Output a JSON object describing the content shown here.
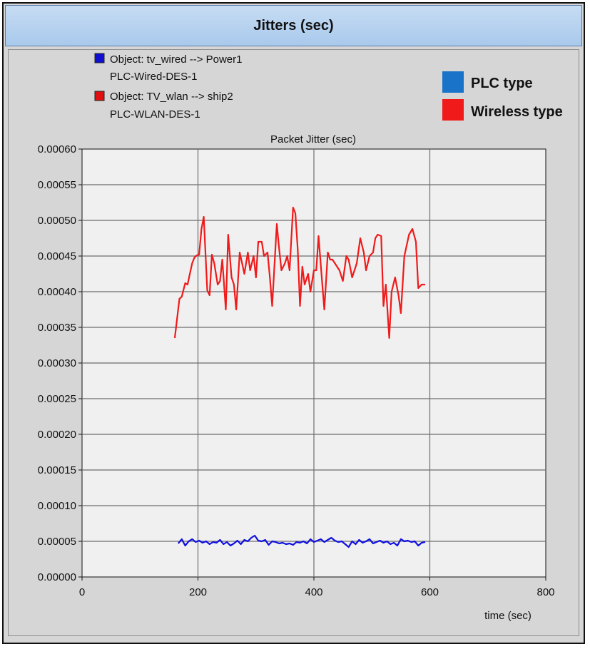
{
  "window": {
    "title": "Jitters (sec)"
  },
  "object_legend": [
    {
      "line1": "Object: tv_wired --> Power1",
      "line2": "PLC-Wired-DES-1",
      "color": "#1010d0"
    },
    {
      "line1": "Object: TV_wlan --> ship2",
      "line2": "PLC-WLAN-DES-1",
      "color": "#e01010"
    }
  ],
  "type_legend": [
    {
      "label": "PLC type",
      "color": "#1873c9"
    },
    {
      "label": "Wireless type",
      "color": "#f01a1a"
    }
  ],
  "chart_data": {
    "type": "line",
    "title": "Packet Jitter (sec)",
    "xlabel": "time (sec)",
    "ylabel": "",
    "xlim": [
      0,
      800
    ],
    "ylim": [
      0,
      0.0006
    ],
    "x_ticks": [
      "0",
      "200",
      "400",
      "600",
      "800"
    ],
    "y_ticks": [
      "0.00000",
      "0.00005",
      "0.00010",
      "0.00015",
      "0.00020",
      "0.00025",
      "0.00030",
      "0.00035",
      "0.00040",
      "0.00045",
      "0.00050",
      "0.00055",
      "0.00060"
    ],
    "grid": true,
    "series": [
      {
        "color": "#1010e0",
        "x": [
          166,
          172,
          178,
          184,
          190,
          196,
          202,
          208,
          214,
          220,
          226,
          232,
          238,
          244,
          250,
          256,
          262,
          268,
          274,
          280,
          286,
          292,
          298,
          304,
          310,
          316,
          322,
          328,
          334,
          340,
          346,
          352,
          358,
          364,
          370,
          376,
          382,
          388,
          394,
          400,
          406,
          412,
          418,
          424,
          430,
          436,
          442,
          448,
          454,
          460,
          466,
          472,
          478,
          484,
          490,
          496,
          502,
          508,
          514,
          520,
          526,
          532,
          538,
          544,
          550,
          556,
          562,
          568,
          574,
          580,
          586,
          592
        ],
        "y": [
          4.7e-05,
          5.3e-05,
          4.4e-05,
          5e-05,
          5.3e-05,
          4.9e-05,
          5.1e-05,
          4.8e-05,
          5e-05,
          4.6e-05,
          4.9e-05,
          4.8e-05,
          5.2e-05,
          4.6e-05,
          4.9e-05,
          4.4e-05,
          4.7e-05,
          5.1e-05,
          4.6e-05,
          5.2e-05,
          5e-05,
          5.5e-05,
          5.8e-05,
          5.1e-05,
          5e-05,
          5.2e-05,
          4.5e-05,
          5e-05,
          4.9e-05,
          4.7e-05,
          4.8e-05,
          4.6e-05,
          4.7e-05,
          4.5e-05,
          4.9e-05,
          4.8e-05,
          5e-05,
          4.7e-05,
          5.3e-05,
          4.9e-05,
          5.1e-05,
          5.3e-05,
          4.9e-05,
          5.2e-05,
          5.5e-05,
          5.1e-05,
          4.9e-05,
          5e-05,
          4.6e-05,
          4.2e-05,
          5e-05,
          4.6e-05,
          5.2e-05,
          4.8e-05,
          5e-05,
          5.3e-05,
          4.7e-05,
          4.9e-05,
          5.1e-05,
          4.8e-05,
          5e-05,
          4.6e-05,
          4.8e-05,
          4.4e-05,
          5.3e-05,
          5e-05,
          5.1e-05,
          4.9e-05,
          5e-05,
          4.4e-05,
          4.8e-05,
          4.9e-05
        ]
      },
      {
        "color": "#f01a1a",
        "x": [
          160,
          168,
          172,
          178,
          182,
          186,
          190,
          194,
          198,
          202,
          206,
          210,
          216,
          220,
          224,
          228,
          234,
          238,
          242,
          248,
          252,
          258,
          262,
          266,
          272,
          276,
          280,
          286,
          290,
          296,
          300,
          304,
          310,
          314,
          320,
          324,
          328,
          336,
          340,
          344,
          350,
          354,
          358,
          364,
          368,
          372,
          376,
          380,
          384,
          390,
          394,
          400,
          404,
          408,
          414,
          418,
          424,
          428,
          432,
          436,
          444,
          450,
          456,
          460,
          466,
          470,
          474,
          480,
          486,
          490,
          496,
          502,
          506,
          510,
          516,
          520,
          524,
          530,
          534,
          540,
          546,
          550,
          556,
          564,
          570,
          576,
          580,
          586,
          592
        ],
        "y": [
          0.000335,
          0.00039,
          0.000393,
          0.000412,
          0.00041,
          0.000425,
          0.00044,
          0.000448,
          0.000451,
          0.000452,
          0.000488,
          0.000505,
          0.000402,
          0.000395,
          0.000452,
          0.00044,
          0.00041,
          0.000415,
          0.000445,
          0.000375,
          0.00048,
          0.00042,
          0.00041,
          0.000375,
          0.000455,
          0.00044,
          0.000425,
          0.000455,
          0.00043,
          0.00045,
          0.00042,
          0.00047,
          0.00047,
          0.00045,
          0.000455,
          0.00042,
          0.00038,
          0.000495,
          0.00046,
          0.00043,
          0.00044,
          0.00045,
          0.00043,
          0.000518,
          0.00051,
          0.00046,
          0.00038,
          0.000435,
          0.00041,
          0.000425,
          0.0004,
          0.00043,
          0.00043,
          0.000478,
          0.000415,
          0.000375,
          0.000455,
          0.000445,
          0.000445,
          0.00044,
          0.00043,
          0.000415,
          0.00045,
          0.000445,
          0.00042,
          0.00043,
          0.00044,
          0.000475,
          0.000455,
          0.00043,
          0.00045,
          0.000455,
          0.000475,
          0.00048,
          0.000478,
          0.00038,
          0.00041,
          0.000335,
          0.0004,
          0.00042,
          0.000395,
          0.00037,
          0.00045,
          0.00048,
          0.000488,
          0.00047,
          0.000405,
          0.00041,
          0.00041
        ]
      }
    ]
  }
}
